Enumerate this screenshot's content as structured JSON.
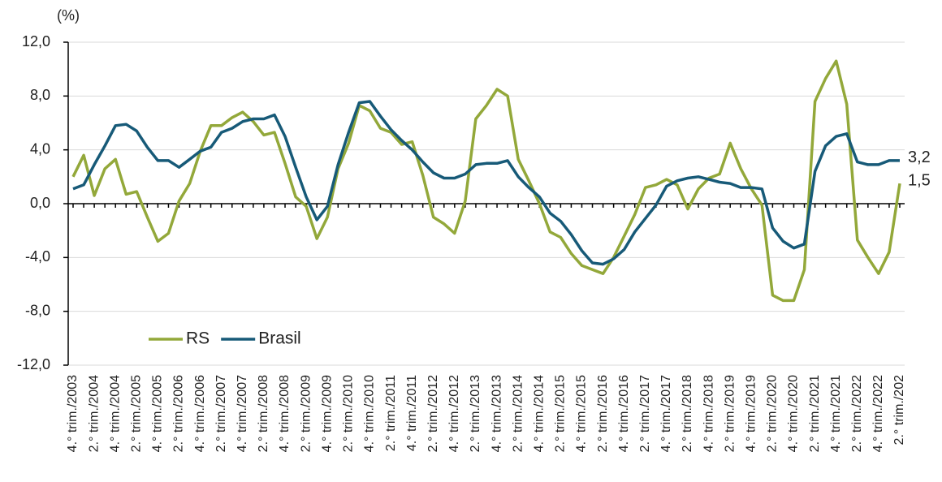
{
  "chart_data": {
    "type": "line",
    "y_label": "(%)",
    "categories": [
      "4.° trim./2003",
      null,
      "2.° trim./2004",
      null,
      "4.° trim./2004",
      null,
      "2.° trim./2005",
      null,
      "4.° trim./2005",
      null,
      "2.° trim./2006",
      null,
      "4.° trim./2006",
      null,
      "2.° trim./2007",
      null,
      "4.° trim./2007",
      null,
      "2.° trim./2008",
      null,
      "4.° trim./2008",
      null,
      "2.° trim./2009",
      null,
      "4.° trim./2009",
      null,
      "2.° trim./2010",
      null,
      "4.° trim./2010",
      null,
      "2.° trim./2011",
      null,
      "4.° trim./2011",
      null,
      "2.° trim./2012",
      null,
      "4.° trim./2012",
      null,
      "2.° trim./2013",
      null,
      "4.° trim./2013",
      null,
      "2.° trim./2014",
      null,
      "4.° trim./2014",
      null,
      "2.° trim./2015",
      null,
      "4.° trim./2015",
      null,
      "2.° trim./2016",
      null,
      "4.° trim./2016",
      null,
      "2.° trim./2017",
      null,
      "4.° trim./2017",
      null,
      "2.° trim./2018",
      null,
      "4.° trim./2018",
      null,
      "2.° trim./2019",
      null,
      "4.° trim./2019",
      null,
      "2.° trim./2020",
      null,
      "4.° trim./2020",
      null,
      "2.° trim./2021",
      null,
      "4.° trim./2021",
      null,
      "2.° trim./2022",
      null,
      "4.° trim./2022",
      null,
      "2.° trim./202"
    ],
    "series": [
      {
        "name": "RS",
        "color": "#93a83a",
        "last_label": "1,5",
        "values": [
          2.0,
          3.6,
          0.6,
          2.6,
          3.3,
          0.7,
          0.9,
          -1.0,
          -2.8,
          -2.2,
          0.2,
          1.5,
          3.9,
          5.8,
          5.8,
          6.4,
          6.8,
          6.1,
          5.1,
          5.3,
          3.0,
          0.5,
          -0.2,
          -2.6,
          -1.0,
          2.6,
          4.5,
          7.3,
          6.9,
          5.6,
          5.3,
          4.4,
          4.6,
          2.1,
          -1.0,
          -1.5,
          -2.2,
          0.2,
          6.3,
          7.3,
          8.5,
          8.0,
          3.3,
          1.7,
          0.0,
          -2.1,
          -2.5,
          -3.7,
          -4.6,
          -4.9,
          -5.2,
          -4.0,
          -2.4,
          -0.8,
          1.2,
          1.4,
          1.8,
          1.4,
          -0.4,
          1.1,
          1.9,
          2.2,
          4.5,
          2.6,
          1.1,
          -0.1,
          -6.8,
          -7.2,
          -7.2,
          -4.9,
          7.6,
          9.3,
          10.6,
          7.4,
          -2.7,
          -4.0,
          -5.2,
          -3.6,
          1.5
        ]
      },
      {
        "name": "Brasil",
        "color": "#175a78",
        "last_label": "3,2",
        "values": [
          1.1,
          1.4,
          2.9,
          4.3,
          5.8,
          5.9,
          5.4,
          4.2,
          3.2,
          3.2,
          2.7,
          3.3,
          3.9,
          4.2,
          5.3,
          5.6,
          6.1,
          6.3,
          6.3,
          6.6,
          5.0,
          2.7,
          0.5,
          -1.2,
          -0.2,
          2.9,
          5.3,
          7.5,
          7.6,
          6.5,
          5.5,
          4.7,
          4.0,
          3.1,
          2.3,
          1.9,
          1.9,
          2.2,
          2.9,
          3.0,
          3.0,
          3.2,
          2.0,
          1.2,
          0.5,
          -0.7,
          -1.3,
          -2.3,
          -3.5,
          -4.4,
          -4.5,
          -4.1,
          -3.4,
          -2.1,
          -1.1,
          -0.1,
          1.3,
          1.7,
          1.9,
          2.0,
          1.8,
          1.6,
          1.5,
          1.2,
          1.2,
          1.1,
          -1.8,
          -2.8,
          -3.3,
          -3.0,
          2.4,
          4.3,
          5.0,
          5.2,
          3.1,
          2.9,
          2.9,
          3.2,
          3.2
        ]
      }
    ],
    "ylim": [
      -12,
      12
    ],
    "yticks": [
      {
        "value": -12,
        "label": "-12,0"
      },
      {
        "value": -8,
        "label": "-8,0"
      },
      {
        "value": -4,
        "label": "-4,0"
      },
      {
        "value": 0,
        "label": "0,0"
      },
      {
        "value": 4,
        "label": "4,0"
      },
      {
        "value": 8,
        "label": "8,0"
      },
      {
        "value": 12,
        "label": "12,0"
      }
    ],
    "grid": true,
    "legend": "lower-left"
  }
}
